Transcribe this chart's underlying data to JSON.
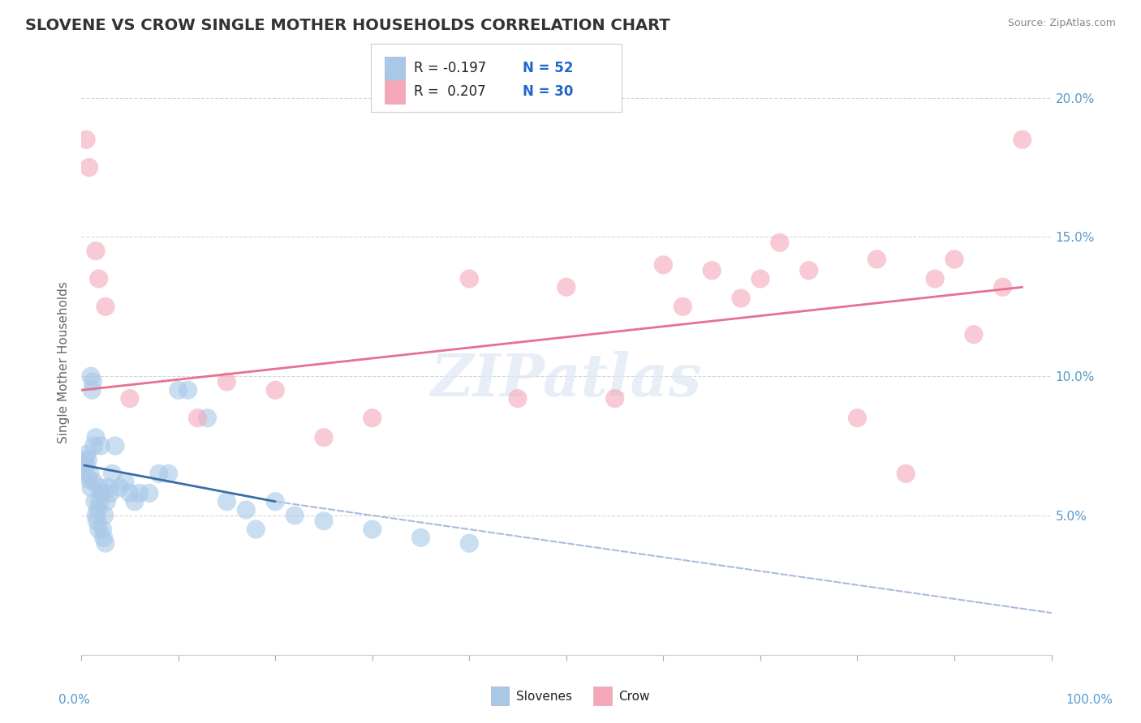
{
  "title": "SLOVENE VS CROW SINGLE MOTHER HOUSEHOLDS CORRELATION CHART",
  "source": "Source: ZipAtlas.com",
  "ylabel": "Single Mother Households",
  "legend_blue_R": "R = -0.197",
  "legend_blue_N": "N = 52",
  "legend_pink_R": "R =  0.207",
  "legend_pink_N": "N = 30",
  "xlim": [
    0,
    100
  ],
  "ylim": [
    0,
    21
  ],
  "yticks": [
    5,
    10,
    15,
    20
  ],
  "ytick_labels": [
    "5.0%",
    "10.0%",
    "15.0%",
    "20.0%"
  ],
  "xtick_positions": [
    0,
    10,
    20,
    30,
    40,
    50,
    60,
    70,
    80,
    90,
    100
  ],
  "bg_color": "#ffffff",
  "grid_color": "#cccccc",
  "blue_color": "#a8c8e8",
  "pink_color": "#f4a7b9",
  "blue_line_color": "#3a6da8",
  "pink_line_color": "#e87090",
  "dashed_line_color": "#aabbdd",
  "title_color": "#333333",
  "axis_label_color": "#666666",
  "legend_R_color": "#222222",
  "legend_N_color": "#2266cc",
  "tick_color": "#5599cc",
  "blue_scatter_x": [
    0.3,
    0.4,
    0.5,
    0.6,
    0.7,
    0.8,
    0.9,
    1.0,
    1.0,
    1.1,
    1.2,
    1.3,
    1.3,
    1.4,
    1.5,
    1.5,
    1.6,
    1.7,
    1.8,
    1.9,
    1.9,
    2.0,
    2.1,
    2.2,
    2.3,
    2.4,
    2.5,
    2.6,
    2.8,
    3.0,
    3.2,
    3.5,
    4.0,
    4.5,
    5.0,
    5.5,
    6.0,
    7.0,
    8.0,
    9.0,
    10.0,
    11.0,
    13.0,
    15.0,
    17.0,
    18.0,
    20.0,
    22.0,
    25.0,
    30.0,
    35.0,
    40.0
  ],
  "blue_scatter_y": [
    6.5,
    7.0,
    6.8,
    7.2,
    7.0,
    6.3,
    6.5,
    6.0,
    10.0,
    9.5,
    9.8,
    6.2,
    7.5,
    5.5,
    5.0,
    7.8,
    4.8,
    5.2,
    4.5,
    5.5,
    6.0,
    7.5,
    5.8,
    4.5,
    4.2,
    5.0,
    4.0,
    5.5,
    6.0,
    5.8,
    6.5,
    7.5,
    6.0,
    6.2,
    5.8,
    5.5,
    5.8,
    5.8,
    6.5,
    6.5,
    9.5,
    9.5,
    8.5,
    5.5,
    5.2,
    4.5,
    5.5,
    5.0,
    4.8,
    4.5,
    4.2,
    4.0
  ],
  "pink_scatter_x": [
    0.5,
    0.8,
    1.5,
    1.8,
    2.5,
    5.0,
    12.0,
    15.0,
    20.0,
    25.0,
    30.0,
    40.0,
    45.0,
    50.0,
    55.0,
    60.0,
    62.0,
    65.0,
    68.0,
    70.0,
    72.0,
    75.0,
    80.0,
    82.0,
    85.0,
    88.0,
    90.0,
    92.0,
    95.0,
    97.0
  ],
  "pink_scatter_y": [
    18.5,
    17.5,
    14.5,
    13.5,
    12.5,
    9.2,
    8.5,
    9.8,
    9.5,
    7.8,
    8.5,
    13.5,
    9.2,
    13.2,
    9.2,
    14.0,
    12.5,
    13.8,
    12.8,
    13.5,
    14.8,
    13.8,
    8.5,
    14.2,
    6.5,
    13.5,
    14.2,
    11.5,
    13.2,
    18.5
  ],
  "blue_trendline_x": [
    0.3,
    20.0
  ],
  "blue_trendline_y": [
    6.8,
    5.5
  ],
  "pink_trendline_x": [
    0,
    97
  ],
  "pink_trendline_y": [
    9.5,
    13.2
  ],
  "dashed_line_x": [
    20,
    100
  ],
  "dashed_line_y": [
    5.5,
    1.5
  ],
  "watermark": "ZIPatlas"
}
